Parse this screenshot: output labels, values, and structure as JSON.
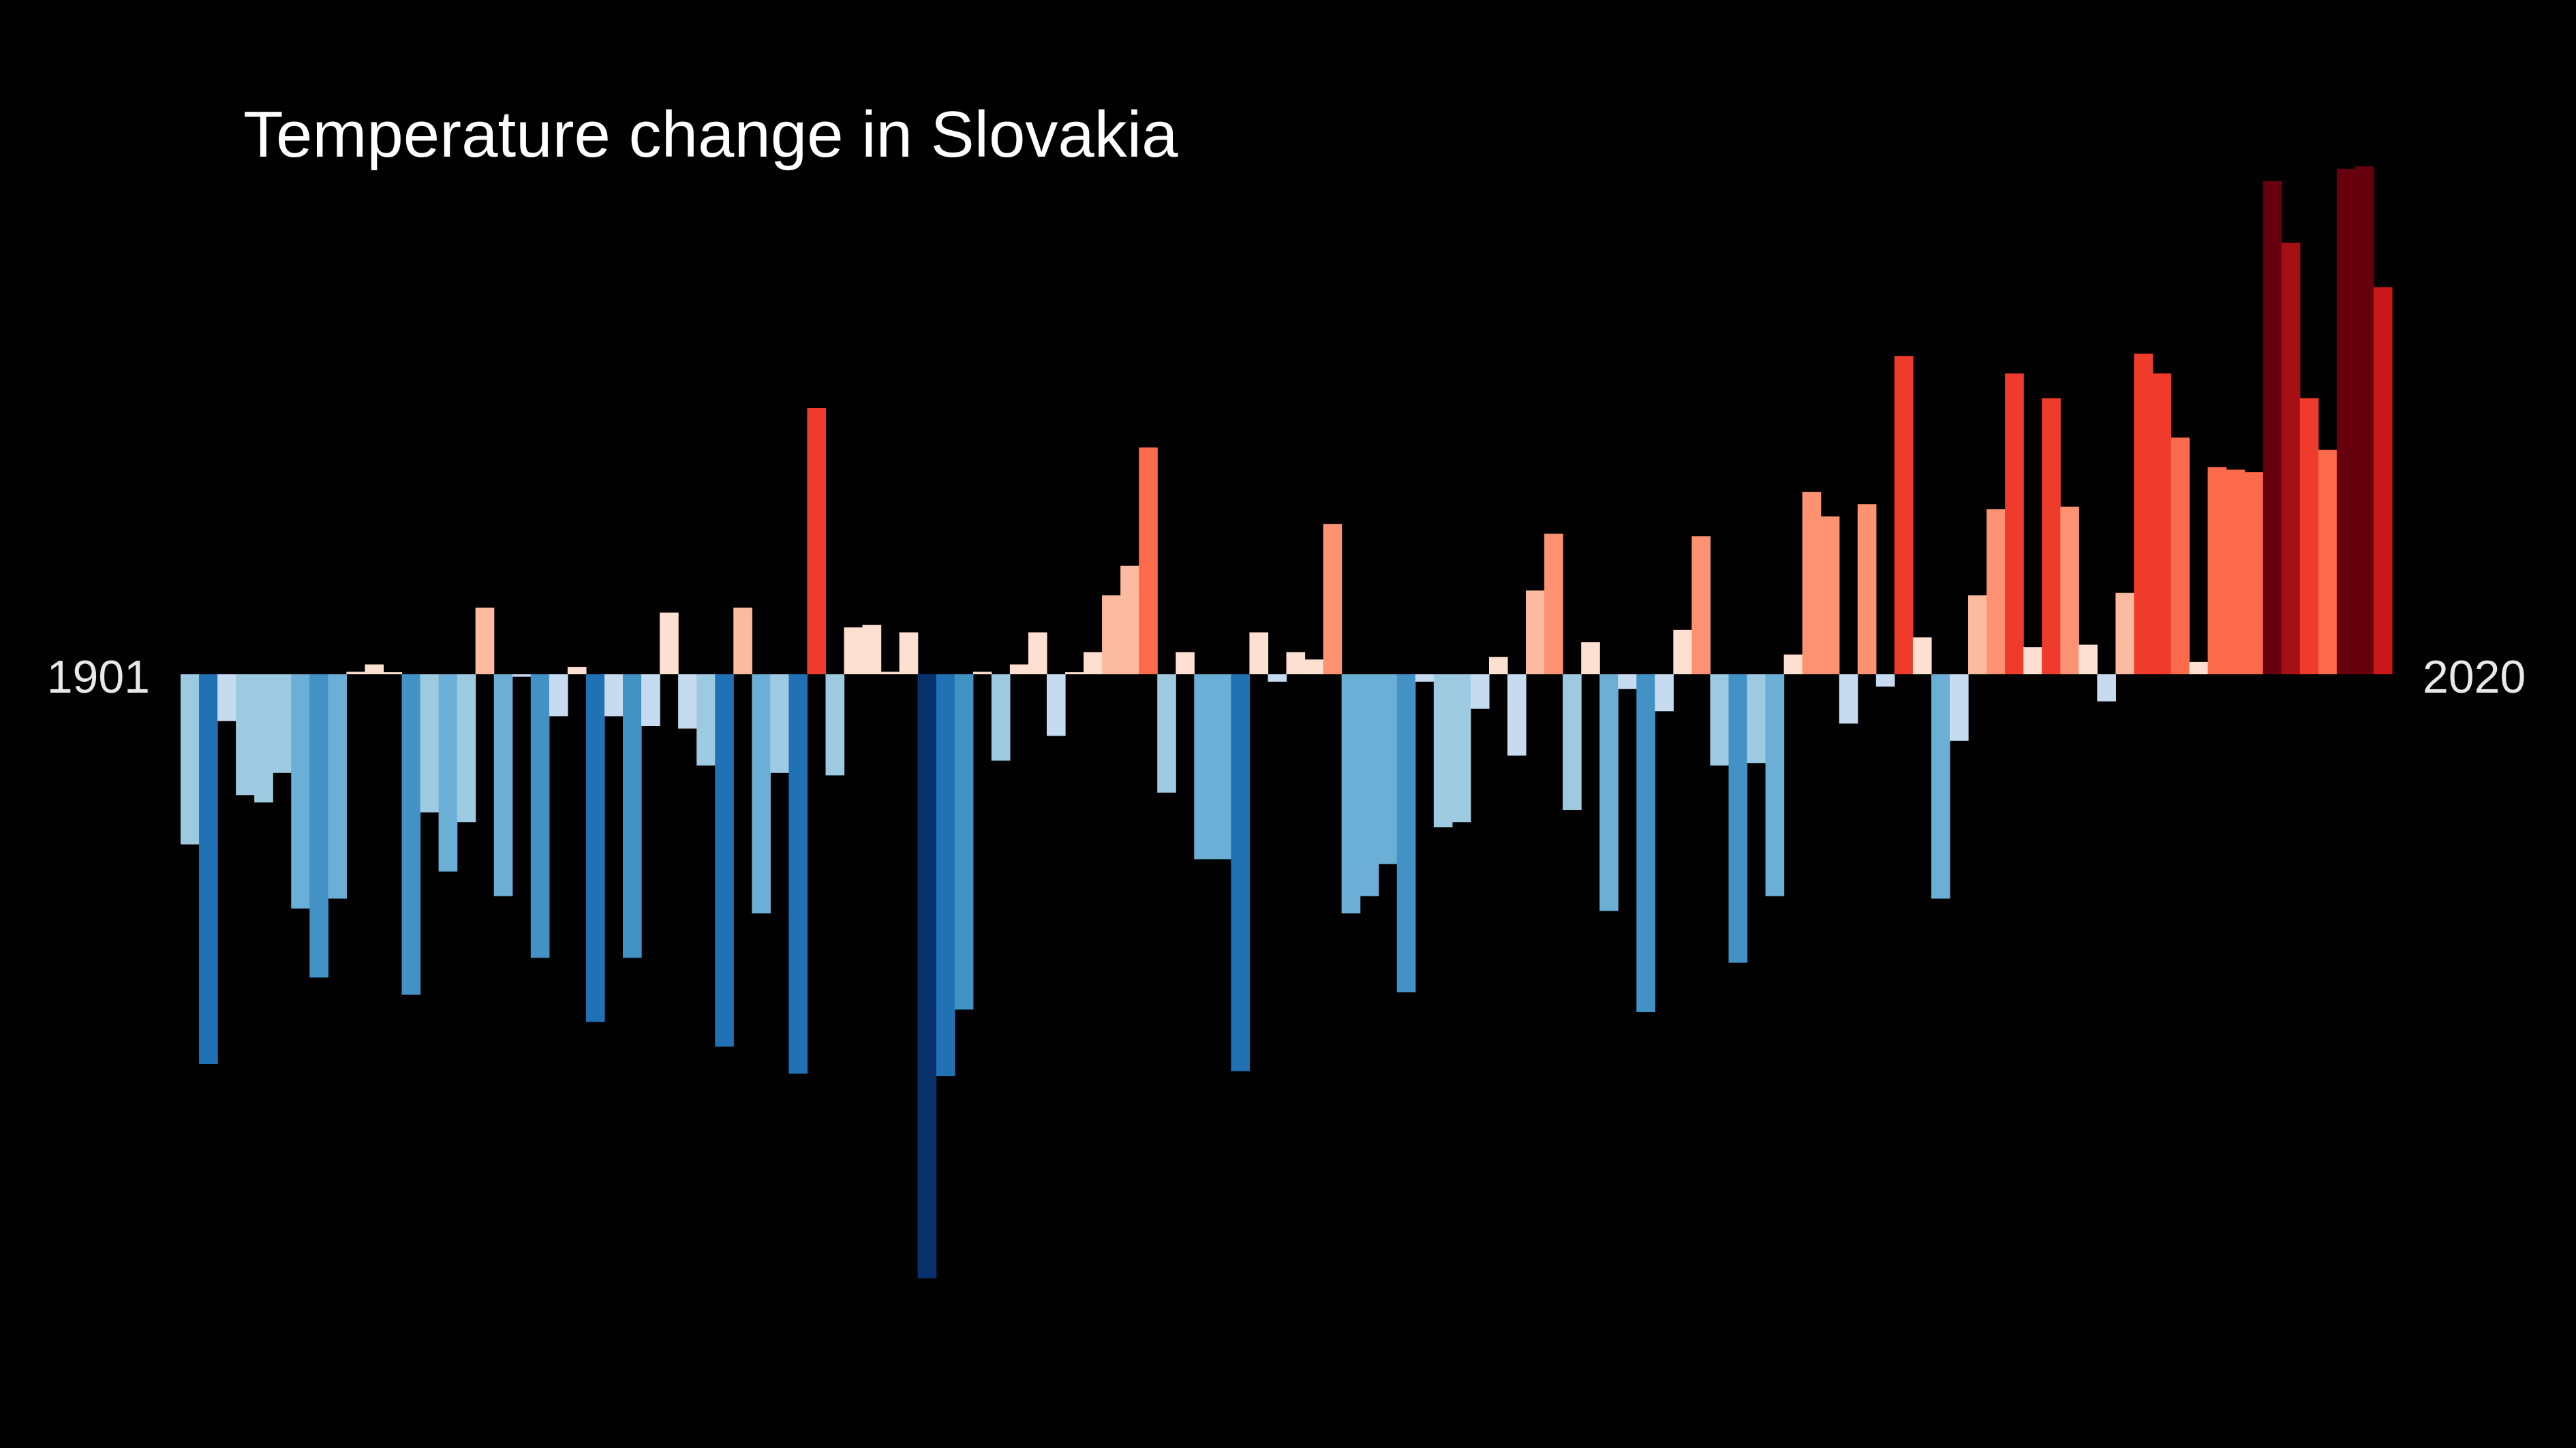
{
  "chart_data": {
    "type": "bar",
    "title": "Temperature change in Slovakia",
    "start_label": "1901",
    "end_label": "2020",
    "xlabel": "",
    "ylabel": "",
    "x": [
      1901,
      1902,
      1903,
      1904,
      1905,
      1906,
      1907,
      1908,
      1909,
      1910,
      1911,
      1912,
      1913,
      1914,
      1915,
      1916,
      1917,
      1918,
      1919,
      1920,
      1921,
      1922,
      1923,
      1924,
      1925,
      1926,
      1927,
      1928,
      1929,
      1930,
      1931,
      1932,
      1933,
      1934,
      1935,
      1936,
      1937,
      1938,
      1939,
      1940,
      1941,
      1942,
      1943,
      1944,
      1945,
      1946,
      1947,
      1948,
      1949,
      1950,
      1951,
      1952,
      1953,
      1954,
      1955,
      1956,
      1957,
      1958,
      1959,
      1960,
      1961,
      1962,
      1963,
      1964,
      1965,
      1966,
      1967,
      1968,
      1969,
      1970,
      1971,
      1972,
      1973,
      1974,
      1975,
      1976,
      1977,
      1978,
      1979,
      1980,
      1981,
      1982,
      1983,
      1984,
      1985,
      1986,
      1987,
      1988,
      1989,
      1990,
      1991,
      1992,
      1993,
      1994,
      1995,
      1996,
      1997,
      1998,
      1999,
      2000,
      2001,
      2002,
      2003,
      2004,
      2005,
      2006,
      2007,
      2008,
      2009,
      2010,
      2011,
      2012,
      2013,
      2014,
      2015,
      2016,
      2017,
      2018,
      2019,
      2020
    ],
    "values": [
      -0.69,
      -1.58,
      -0.19,
      -0.49,
      -0.52,
      -0.4,
      -0.95,
      -1.23,
      -0.91,
      0.01,
      0.04,
      0.0,
      -1.3,
      -0.56,
      -0.8,
      -0.6,
      0.27,
      -0.9,
      -0.01,
      -1.15,
      -0.17,
      0.03,
      -1.41,
      -0.17,
      -1.15,
      -0.21,
      0.25,
      -0.22,
      -0.37,
      -1.51,
      0.27,
      -0.97,
      -0.4,
      -1.62,
      1.08,
      -0.41,
      0.19,
      0.2,
      0.01,
      0.17,
      -2.45,
      -1.63,
      -1.36,
      0.01,
      -0.35,
      0.04,
      0.17,
      -0.25,
      0.0,
      0.09,
      0.32,
      0.44,
      0.92,
      -0.48,
      0.09,
      -0.75,
      -0.75,
      -1.61,
      0.17,
      -0.03,
      0.09,
      0.06,
      0.61,
      -0.97,
      -0.9,
      -0.77,
      -1.29,
      -0.03,
      -0.62,
      -0.6,
      -0.14,
      0.07,
      -0.33,
      0.34,
      0.57,
      -0.55,
      0.13,
      -0.96,
      -0.06,
      -1.37,
      -0.15,
      0.18,
      0.56,
      -0.37,
      -1.17,
      -0.36,
      -0.9,
      0.08,
      0.74,
      0.64,
      -0.2,
      0.69,
      -0.05,
      1.29,
      0.15,
      -0.91,
      -0.27,
      0.32,
      0.67,
      1.22,
      0.11,
      1.12,
      0.68,
      0.12,
      -0.11,
      0.33,
      1.3,
      1.22,
      0.96,
      0.05,
      0.84,
      0.83,
      0.82,
      2.0,
      1.75,
      1.12,
      0.91,
      2.05,
      2.06,
      1.57
    ],
    "ylim": [
      -2.5,
      2.1
    ],
    "grid": false,
    "legend": "none",
    "colors": {
      "background": "#000000",
      "title": "#ffffff",
      "labels": "#e8e8e8",
      "cold_scale": [
        "#c6dbef",
        "#9ecae1",
        "#6baed6",
        "#4292c6",
        "#2171b5",
        "#08519c",
        "#08306b"
      ],
      "warm_scale": [
        "#fee0d2",
        "#fcbba1",
        "#fc9272",
        "#fb6a4a",
        "#ef3b2c",
        "#cb181d",
        "#a50f15",
        "#67000d"
      ]
    }
  }
}
